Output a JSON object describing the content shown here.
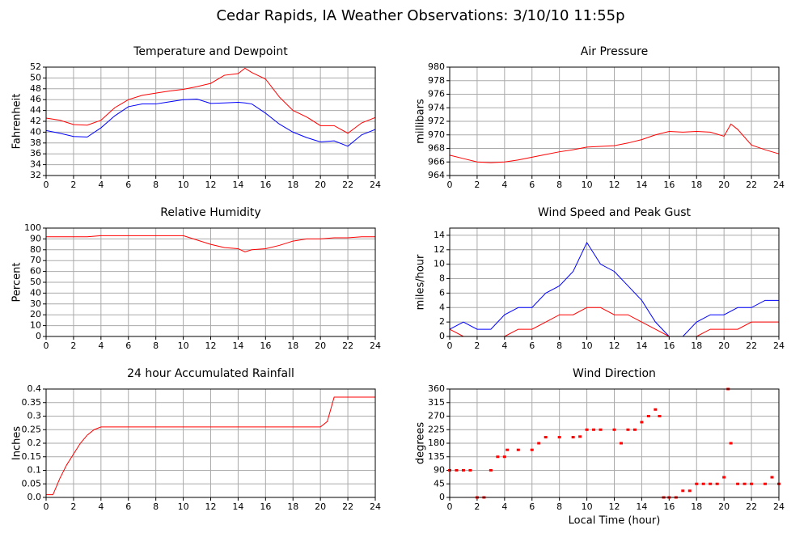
{
  "title": "Cedar Rapids, IA Weather Observations: 3/10/10 11:55p",
  "chart_data": [
    {
      "type": "line",
      "title": "Temperature and Dewpoint",
      "ylabel": "Fahrenheit",
      "x": [
        0,
        1,
        2,
        3,
        4,
        5,
        6,
        7,
        8,
        9,
        10,
        11,
        12,
        13,
        14,
        14.5,
        15,
        16,
        17,
        18,
        19,
        20,
        21,
        22,
        23,
        24
      ],
      "series": [
        {
          "color": "#ff0000",
          "values": [
            42.6,
            42.2,
            41.4,
            41.3,
            42.2,
            44.5,
            46,
            46.8,
            47.2,
            47.6,
            47.9,
            48.4,
            49,
            50.5,
            50.8,
            51.8,
            51,
            49.8,
            46.5,
            44,
            42.8,
            41.2,
            41.2,
            39.8,
            41.7,
            42.7
          ]
        },
        {
          "color": "#0000ff",
          "values": [
            40.3,
            39.8,
            39.2,
            39.1,
            40.8,
            43,
            44.7,
            45.2,
            45.2,
            45.6,
            46,
            46.1,
            45.3,
            45.4,
            45.5,
            45.4,
            45.2,
            43.5,
            41.5,
            40,
            39,
            38.2,
            38.4,
            37.4,
            39.5,
            40.5
          ]
        }
      ],
      "xlim": [
        0,
        24
      ],
      "xticks": [
        0,
        2,
        4,
        6,
        8,
        10,
        12,
        14,
        16,
        18,
        20,
        22,
        24
      ],
      "ylim": [
        32,
        52
      ],
      "yticks": [
        32,
        34,
        36,
        38,
        40,
        42,
        44,
        46,
        48,
        50,
        52
      ],
      "grid": true
    },
    {
      "type": "line",
      "title": "Air Pressure",
      "ylabel": "millibars",
      "x": [
        0,
        1,
        2,
        3,
        4,
        5,
        6,
        7,
        8,
        9,
        10,
        11,
        12,
        13,
        14,
        15,
        16,
        17,
        18,
        19,
        20,
        20.5,
        21,
        22,
        23,
        24
      ],
      "series": [
        {
          "color": "#ff0000",
          "values": [
            967,
            966.5,
            966,
            965.9,
            966,
            966.3,
            966.7,
            967.1,
            967.5,
            967.8,
            968.2,
            968.3,
            968.4,
            968.8,
            969.3,
            970,
            970.5,
            970.4,
            970.5,
            970.4,
            969.8,
            971.6,
            970.8,
            968.5,
            967.8,
            967.2
          ]
        }
      ],
      "xlim": [
        0,
        24
      ],
      "xticks": [
        0,
        2,
        4,
        6,
        8,
        10,
        12,
        14,
        16,
        18,
        20,
        22,
        24
      ],
      "ylim": [
        964,
        980
      ],
      "yticks": [
        964,
        966,
        968,
        970,
        972,
        974,
        976,
        978,
        980
      ],
      "grid": true
    },
    {
      "type": "line",
      "title": "Relative Humidity",
      "ylabel": "Percent",
      "x": [
        0,
        1,
        2,
        3,
        4,
        5,
        6,
        7,
        8,
        9,
        10,
        11,
        12,
        13,
        14,
        14.5,
        15,
        16,
        17,
        18,
        19,
        20,
        21,
        22,
        23,
        24
      ],
      "series": [
        {
          "color": "#ff0000",
          "values": [
            92,
            92,
            92,
            92,
            93,
            93,
            93,
            93,
            93,
            93,
            93,
            89,
            85,
            82,
            81,
            78,
            80,
            81,
            84,
            88,
            90,
            90,
            91,
            91,
            92,
            92
          ]
        }
      ],
      "xlim": [
        0,
        24
      ],
      "xticks": [
        0,
        2,
        4,
        6,
        8,
        10,
        12,
        14,
        16,
        18,
        20,
        22,
        24
      ],
      "ylim": [
        0,
        100
      ],
      "yticks": [
        0,
        10,
        20,
        30,
        40,
        50,
        60,
        70,
        80,
        90,
        100
      ],
      "grid": true
    },
    {
      "type": "line",
      "title": "Wind Speed and Peak Gust",
      "ylabel": "miles/hour",
      "x": [
        0,
        1,
        2,
        3,
        4,
        5,
        6,
        7,
        8,
        9,
        10,
        11,
        12,
        13,
        14,
        15,
        16,
        17,
        18,
        19,
        20,
        21,
        22,
        23,
        24
      ],
      "series": [
        {
          "color": "#0000ff",
          "values": [
            1,
            2,
            1,
            1,
            3,
            4,
            4,
            6,
            7,
            9,
            13,
            10,
            9,
            7,
            5,
            2,
            0,
            0,
            2,
            3,
            3,
            4,
            4,
            5,
            5
          ]
        },
        {
          "color": "#ff0000",
          "values": [
            1,
            0,
            0,
            0,
            0,
            1,
            1,
            2,
            3,
            3,
            4,
            4,
            3,
            3,
            2,
            1,
            0,
            0,
            0,
            1,
            1,
            1,
            2,
            2,
            2
          ]
        }
      ],
      "xlim": [
        0,
        24
      ],
      "xticks": [
        0,
        2,
        4,
        6,
        8,
        10,
        12,
        14,
        16,
        18,
        20,
        22,
        24
      ],
      "ylim": [
        0,
        15
      ],
      "yticks": [
        0,
        2,
        4,
        6,
        8,
        10,
        12,
        14
      ],
      "grid": true
    },
    {
      "type": "line",
      "title": "24 hour Accumulated Rainfall",
      "ylabel": "Inches",
      "x": [
        0,
        0.5,
        1,
        1.5,
        2,
        2.5,
        3,
        3.5,
        4,
        20,
        20.5,
        21,
        24
      ],
      "series": [
        {
          "color": "#ff0000",
          "values": [
            0.01,
            0.01,
            0.07,
            0.12,
            0.16,
            0.2,
            0.23,
            0.25,
            0.26,
            0.26,
            0.28,
            0.37,
            0.37
          ]
        }
      ],
      "xlim": [
        0,
        24
      ],
      "xticks": [
        0,
        2,
        4,
        6,
        8,
        10,
        12,
        14,
        16,
        18,
        20,
        22,
        24
      ],
      "ylim": [
        0,
        0.4
      ],
      "yticks": [
        {
          "value": 0,
          "label": "0.0"
        },
        0.05,
        0.1,
        0.15,
        0.2,
        0.25,
        0.3,
        0.35,
        0.4
      ],
      "grid": true
    },
    {
      "type": "scatter",
      "title": "Wind Direction",
      "ylabel": "degrees",
      "xlabel": "Local Time (hour)",
      "x": [
        0,
        0.5,
        1,
        1.5,
        2,
        2.5,
        3,
        3.5,
        4,
        4.2,
        5,
        6,
        6.5,
        7,
        8,
        9,
        9.5,
        10,
        10.5,
        11,
        12,
        12.5,
        13,
        13.5,
        14,
        14.5,
        15,
        15.3,
        15.6,
        16,
        16.5,
        17,
        17.5,
        18,
        18.5,
        19,
        19.5,
        20,
        20.3,
        20.5,
        21,
        21.5,
        22,
        23,
        23.5,
        24
      ],
      "series": [
        {
          "color": "#ff0000",
          "values": [
            90,
            90,
            90,
            90,
            0,
            0,
            90,
            135,
            135,
            158,
            158,
            158,
            180,
            200,
            200,
            200,
            202,
            225,
            225,
            225,
            225,
            180,
            225,
            225,
            250,
            270,
            292,
            270,
            0,
            0,
            0,
            22,
            22,
            45,
            45,
            45,
            45,
            67,
            360,
            180,
            45,
            45,
            45,
            45,
            67,
            45
          ]
        }
      ],
      "xlim": [
        0,
        24
      ],
      "xticks": [
        0,
        2,
        4,
        6,
        8,
        10,
        12,
        14,
        16,
        18,
        20,
        22,
        24
      ],
      "ylim": [
        0,
        360
      ],
      "yticks": [
        0,
        45,
        90,
        135,
        180,
        225,
        270,
        315,
        360
      ],
      "grid": true
    }
  ]
}
